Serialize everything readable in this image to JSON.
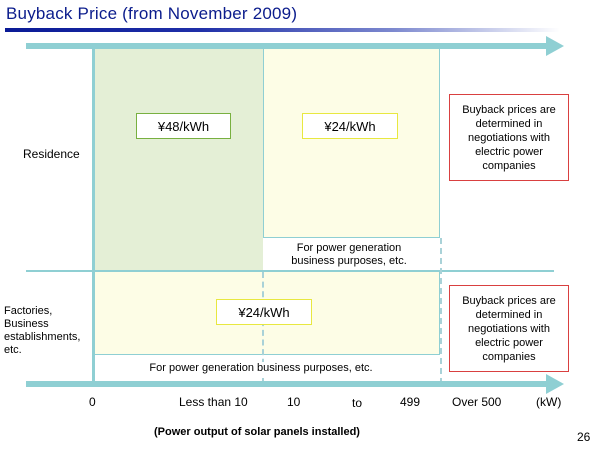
{
  "title": "Buyback Price (from November 2009)",
  "rows": {
    "residence": "Residence",
    "factories": "Factories,\nBusiness\nestablishments,\netc."
  },
  "prices": {
    "residence_small": "¥48/kWh",
    "residence_large": "¥24/kWh",
    "factories": "¥24/kWh"
  },
  "notes": {
    "residence_large": "For power generation\nbusiness  purposes, etc.",
    "factories": "For power generation business purposes, etc."
  },
  "negotiation_note": "Buyback prices are\ndetermined in\nnegotiations with\nelectric power\ncompanies",
  "axis": {
    "ticks": [
      "0",
      "Less than 10",
      "10",
      "to",
      "499",
      "Over 500",
      "(kW)"
    ],
    "title": "(Power output of solar panels installed)"
  },
  "page_number": "26",
  "colors": {
    "title": "#0b1c8c",
    "axis": "#8fcfd3",
    "green_region": "#e4efd6",
    "cream_region": "#fdfde6",
    "red_border": "#d94040"
  }
}
